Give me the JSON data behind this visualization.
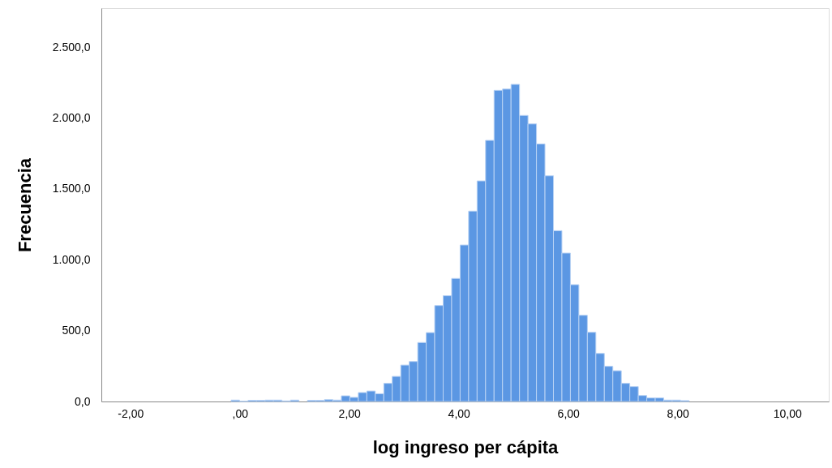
{
  "chart_data": {
    "type": "histogram",
    "xlabel": "log ingreso per cápita",
    "ylabel": "Frecuencia",
    "bins": [
      -0.16,
      -0.005,
      0.15,
      0.305,
      0.46,
      0.615,
      0.77,
      0.925,
      1.08,
      1.235,
      1.39,
      1.545,
      1.7,
      1.855,
      2.01,
      2.165,
      2.32,
      2.475,
      2.63,
      2.785,
      2.94,
      3.095,
      3.25,
      3.405,
      3.56,
      3.715,
      3.87,
      4.025,
      4.18,
      4.335,
      4.49,
      4.645,
      4.8,
      4.955,
      5.11,
      5.265,
      5.42,
      5.575,
      5.73,
      5.885,
      6.04,
      6.195,
      6.35,
      6.505,
      6.66,
      6.815,
      6.97,
      7.125,
      7.28,
      7.435,
      7.59,
      7.745,
      7.9,
      8.055,
      8.21
    ],
    "values": [
      10,
      2,
      8,
      8,
      10,
      10,
      4,
      10,
      0,
      8,
      8,
      13,
      10,
      40,
      29,
      63,
      74,
      55,
      128,
      177,
      257,
      282,
      416,
      486,
      677,
      746,
      868,
      1104,
      1343,
      1556,
      1842,
      2195,
      2204,
      2237,
      2018,
      1958,
      1817,
      1592,
      1205,
      1047,
      824,
      608,
      488,
      339,
      248,
      217,
      128,
      105,
      42,
      25,
      25,
      10,
      10,
      6
    ],
    "color": "#5b97e3",
    "xlim": [
      -2.53,
      10.76
    ],
    "xticks": [
      {
        "value": -2,
        "label": "-2,00"
      },
      {
        "value": 0,
        "label": ",00"
      },
      {
        "value": 2,
        "label": "2,00"
      },
      {
        "value": 4,
        "label": "4,00"
      },
      {
        "value": 6,
        "label": "6,00"
      },
      {
        "value": 8,
        "label": "8,00"
      },
      {
        "value": 10,
        "label": "10,00"
      }
    ],
    "ylim": [
      0,
      2775
    ],
    "yticks": [
      {
        "value": 0,
        "label": "0,0"
      },
      {
        "value": 500,
        "label": "500,0"
      },
      {
        "value": 1000,
        "label": "1.000,0"
      },
      {
        "value": 1500,
        "label": "1.500,0"
      },
      {
        "value": 2000,
        "label": "2.000,0"
      },
      {
        "value": 2500,
        "label": "2.500,0"
      }
    ],
    "grid": false
  }
}
